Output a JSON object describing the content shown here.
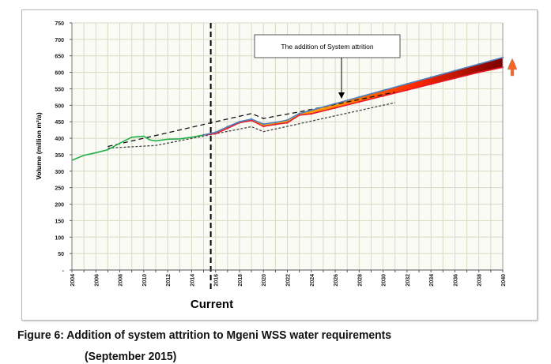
{
  "chart_data": {
    "type": "line",
    "ylabel": "Volume (million m³/a)",
    "xlim": [
      2004,
      2040
    ],
    "ylim": [
      0,
      750
    ],
    "grid": true,
    "y_ticks": [
      "-",
      "50",
      "100",
      "150",
      "200",
      "250",
      "300",
      "350",
      "400",
      "450",
      "500",
      "550",
      "600",
      "650",
      "700",
      "750"
    ],
    "x_ticks": [
      "2004",
      "2006",
      "2008",
      "2010",
      "2012",
      "2014",
      "2016",
      "2018",
      "2020",
      "2022",
      "2024",
      "2026",
      "2028",
      "2030",
      "2032",
      "2034",
      "2036",
      "2038",
      "2040"
    ],
    "series": [
      {
        "color": "#22b04a",
        "style": "solid",
        "x": [
          2004,
          2005,
          2006,
          2007,
          2008,
          2009,
          2010,
          2010.5,
          2011,
          2012,
          2013,
          2014,
          2015
        ],
        "y": [
          333,
          348,
          356,
          365,
          385,
          403,
          406,
          395,
          392,
          397,
          398,
          403,
          410
        ]
      },
      {
        "color": "#4f81bd",
        "style": "solid",
        "x": [
          2015,
          2016,
          2017,
          2018,
          2019,
          2020,
          2021,
          2022,
          2023,
          2024,
          2026,
          2028,
          2030,
          2032,
          2034,
          2036,
          2038,
          2040
        ],
        "y": [
          410,
          418,
          435,
          450,
          458,
          443,
          448,
          455,
          475,
          485,
          505,
          525,
          545,
          565,
          585,
          605,
          625,
          645
        ]
      },
      {
        "color": "#e8192c",
        "style": "solid",
        "x": [
          2015,
          2016,
          2017,
          2018,
          2019,
          2020,
          2021,
          2022,
          2023,
          2024,
          2026,
          2028,
          2030,
          2032,
          2034,
          2036,
          2038,
          2040
        ],
        "y": [
          410,
          414,
          430,
          447,
          454,
          436,
          442,
          447,
          470,
          474,
          492,
          510,
          528,
          546,
          564,
          582,
          600,
          615
        ]
      },
      {
        "color": "#111111",
        "style": "dashed",
        "x": [
          2007,
          2019,
          2020,
          2023,
          2031
        ],
        "y": [
          375,
          475,
          460,
          480,
          540
        ]
      },
      {
        "color": "#444444",
        "style": "dotted",
        "x": [
          2007,
          2011,
          2019,
          2020,
          2031
        ],
        "y": [
          370,
          378,
          435,
          420,
          508
        ]
      }
    ],
    "current_marker": {
      "x": 2015.6,
      "label": "Current"
    },
    "annotation": {
      "text": "The addition of System attrition",
      "points_to": {
        "x": 2026.5,
        "y": 510
      }
    },
    "band_colors": [
      "#ffd400",
      "#ff8c00",
      "#ff2a00",
      "#7a0000"
    ]
  },
  "caption": {
    "line1": "Figure 6: Addition of system attrition to Mgeni WSS water requirements",
    "line2": "(September 2015)"
  }
}
